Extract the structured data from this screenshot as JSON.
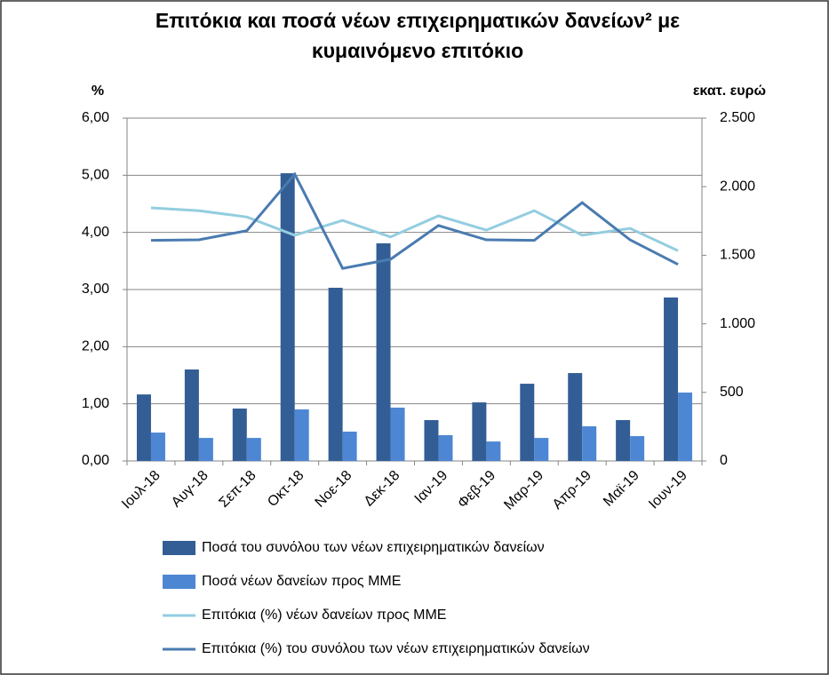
{
  "chart_data": {
    "type": "combo",
    "title": [
      "Επιτόκια και ποσά νέων επιχειρηματικών δανείων² με",
      "κυμαινόμενο επιτόκιο"
    ],
    "ylabel": "%",
    "y2label": "εκατ. ευρώ",
    "categories": [
      "Ιουλ-18",
      "Αυγ-18",
      "Σεπ-18",
      "Οκτ-18",
      "Νοε-18",
      "Δεκ-18",
      "Ιαν-19",
      "Φεβ-19",
      "Μαρ-19",
      "Απρ-19",
      "Μαϊ-19",
      "Ιουν-19"
    ],
    "ylim": [
      0,
      6
    ],
    "yticks": [
      {
        "value": 0,
        "label": "0,00"
      },
      {
        "value": 1,
        "label": "1,00"
      },
      {
        "value": 2,
        "label": "2,00"
      },
      {
        "value": 3,
        "label": "3,00"
      },
      {
        "value": 4,
        "label": "4,00"
      },
      {
        "value": 5,
        "label": "5,00"
      },
      {
        "value": 6,
        "label": "6,00"
      }
    ],
    "y2lim": [
      0,
      2500
    ],
    "y2ticks": [
      0,
      500,
      {
        "value": 1000,
        "label": "1.000"
      },
      {
        "value": 1500,
        "label": "1.500"
      },
      {
        "value": 2000,
        "label": "2.000"
      },
      {
        "value": 2500,
        "label": "2.500"
      }
    ],
    "grid": true,
    "series": [
      {
        "name": "Ποσά του συνόλου των νέων επιχειρηματικών δανείων",
        "type": "bar",
        "axis": "y2",
        "color": "#335e95",
        "values": [
          485,
          667,
          382,
          2098,
          1263,
          1587,
          298,
          427,
          563,
          641,
          298,
          1192
        ]
      },
      {
        "name": "Ποσά νέων δανείων προς ΜΜΕ",
        "type": "bar",
        "axis": "y2",
        "color": "#4d87d3",
        "values": [
          207,
          168,
          168,
          376,
          214,
          389,
          188,
          142,
          168,
          253,
          181,
          499
        ]
      },
      {
        "name": "Επιτόκια (%) νέων δανείων προς ΜΜΕ",
        "type": "line",
        "color": "#93cde0",
        "values": [
          4.43,
          4.38,
          4.27,
          3.95,
          4.21,
          3.92,
          4.29,
          4.04,
          4.38,
          3.95,
          4.07,
          3.68
        ]
      },
      {
        "name": "Επιτόκια (%) του συνόλου των νέων επιχειρηματικών δανείων",
        "type": "line",
        "color": "#4a7bb0",
        "values": [
          3.86,
          3.87,
          4.03,
          5.02,
          3.37,
          3.53,
          4.12,
          3.87,
          3.86,
          4.52,
          3.87,
          3.44
        ]
      }
    ]
  }
}
